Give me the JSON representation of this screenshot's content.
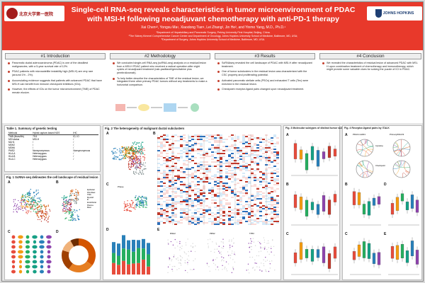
{
  "header": {
    "title": "Single-cell RNA-seq reveals characteristics in tumor microenvironment of PDAC with MSI-H following neoadjuvant chemotherapy with anti-PD-1 therapy",
    "authors": "Xai Chen¹², Yongsu Ma¹, Xiaodong Tian¹, Lei Zhang², Jin He², and Yinmo Yang, M.D., Ph.D.¹",
    "affiliations": [
      "¹Department of Hepatobiliary and Pancreatic Surgery, Peking University First Hospital, Beijing, China.",
      "²The Sidney Kimmel Comprehensive Cancer Center and Department of Oncology, Johns Hopkins University School of Medicine, Baltimore, MD, USA;",
      "³Department of Surgery, Johns Hopkins University School of Medicine, Baltimore, MD, USA."
    ],
    "logo_left": "北京大学第一医院",
    "logo_right": "JOHNS HOPKINS",
    "colors": {
      "banner": "#e8392b"
    }
  },
  "sections": {
    "introduction": {
      "heading": "#1 Introduction",
      "bullets": [
        "Pancreatic ductal adenocarcinoma (PDAC) is one of the deadliest malignancies, with a 5-year survival rate of 12%.",
        "PDAC patients with microsatellite instability high (MSI-H) are very rare (around 1% - 2%).",
        "Accumulating evidence suggests that patients with advanced PDAC that have MSI-H can benefit from immune checkpoint inhibitors (ICIs).",
        "However, the effects of ICIs on the tumor microenvironment (TME) of PDAC remain elusive."
      ]
    },
    "methodology": {
      "heading": "#2 Methodology",
      "bullets": [
        "We conducted single-cell RNA-seq (scRNA-seq) analysis on a residual lesion from a MSI-H PDAC patient who received a radical operation after eight cycles of neoadjuvant treatment (nab-paclitaxel/gemcitabine plus pembrolizumab).",
        "To help better describe the characteristics of TME of the residual lesion, we integrated three other primary PDAC tumors without any treatments to make a horizontal comparison."
      ]
    },
    "results": {
      "heading": "#3 Results",
      "bullets": [
        "ScRNAseq revealed the cell landscape of PDAC with MSI-H after neoadjuvant treatment.",
        "One of tumor subclusters in the residual lesion was characterized with the CSC property and proliferating potential.",
        "Activated pancreatic stellate cells (PSCs) and exhausted T cells (Tex) were enriched in the residual lesion.",
        "Checkpoint receptor-ligand pairs changed upon neoadjuvant treatment."
      ]
    },
    "conclusion": {
      "heading": "#4 Conclusion",
      "bullets": [
        "We revealed the characteristics of residual lesion of advanced PDAC with MSI-H upon combination treatment of chemotherapy and immunotherapy, which might provide some valuable clues for solving the puzzle of ICI in PDAC."
      ]
    }
  },
  "figures": {
    "table1": {
      "title": "Table 1. Summary of genetic testing",
      "header": [
        "Methods",
        "Hybrid capture-based NGS",
        "IHC"
      ],
      "rows": [
        [
          "TMB (Muts/Mb)",
          "79.5",
          "ID, IO"
        ],
        [
          "MSI status",
          "MSI-H",
          "/"
        ],
        [
          "MLH1",
          "/",
          "/"
        ],
        [
          "MSH2",
          "/",
          "/"
        ],
        [
          "MSH6",
          "/",
          "/"
        ],
        [
          "PMS2",
          "Nonsynonymous",
          "Nonsynonymous"
        ],
        [
          "HLA-A",
          "Heterozygous",
          "/"
        ],
        [
          "HLA-B",
          "Heterozygous",
          "/"
        ],
        [
          "HLA-C",
          "Heterozygous",
          "/"
        ]
      ]
    },
    "fig1": {
      "title": "Fig. 1 ScRNA-seq delineates the cell landscape of residual lesion",
      "labels": [
        "A",
        "B",
        "C",
        "D"
      ],
      "legend": [
        "Epithelial",
        "Fibroblast",
        "T/NK",
        "Myeloid",
        "B",
        "Endothelial",
        "Plasma",
        "Mast"
      ],
      "donut": {
        "items": [
          "Epithelial",
          "Fibroblast",
          "T/NK",
          "Myeloid",
          "B cell"
        ],
        "colors": [
          "#d35400",
          "#e67e22",
          "#a04000",
          "#f0b27a",
          "#6e2c00"
        ]
      }
    },
    "fig2": {
      "title": "Fig. 2 The heterogeneity of malignant ductal subclusters",
      "labels": [
        "A",
        "B",
        "C",
        "D",
        "E"
      ],
      "e_headers": [
        "MSH2",
        "PMS2",
        "TP53"
      ],
      "c_label": "Phase"
    },
    "fig3": {
      "title": "Fig. 3 Molecular subtypes of distinct tumor subclusters",
      "labels": [
        "A",
        "B",
        "C"
      ]
    },
    "fig4": {
      "title": "Fig. 4 Receptor-ligand pairs by iTALK",
      "labels": [
        "A",
        "B",
        "C",
        "D",
        "E"
      ],
      "circos_titles": [
        "PDACmsi001",
        "Primary001/2/3"
      ],
      "circos_labels": [
        "Cytokine",
        "Checkpoint"
      ]
    },
    "colors": {
      "boxplot": [
        "#e74c3c",
        "#f39c12",
        "#27ae60",
        "#16a085",
        "#2980b9",
        "#8e44ad",
        "#c0392b"
      ]
    }
  }
}
